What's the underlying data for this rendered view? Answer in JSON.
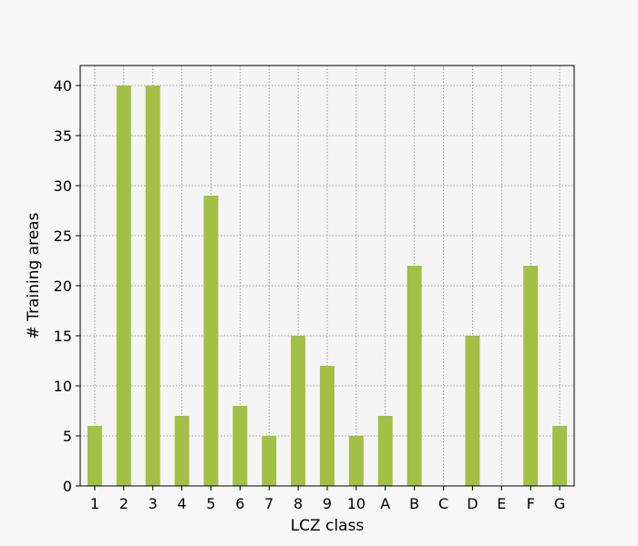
{
  "chart_data": {
    "type": "bar",
    "title": "",
    "xlabel": "LCZ class",
    "ylabel": "# Training areas",
    "categories": [
      "1",
      "2",
      "3",
      "4",
      "5",
      "6",
      "7",
      "8",
      "9",
      "10",
      "A",
      "B",
      "C",
      "D",
      "E",
      "F",
      "G"
    ],
    "values": [
      6,
      40,
      40,
      7,
      29,
      8,
      5,
      15,
      12,
      5,
      7,
      22,
      0,
      15,
      0,
      22,
      6
    ],
    "ylim": [
      0,
      42
    ],
    "yticks": [
      0,
      5,
      10,
      15,
      20,
      25,
      30,
      35,
      40
    ],
    "grid": true,
    "bar_color": "#a4bf45",
    "background": "#f5f5f5"
  }
}
